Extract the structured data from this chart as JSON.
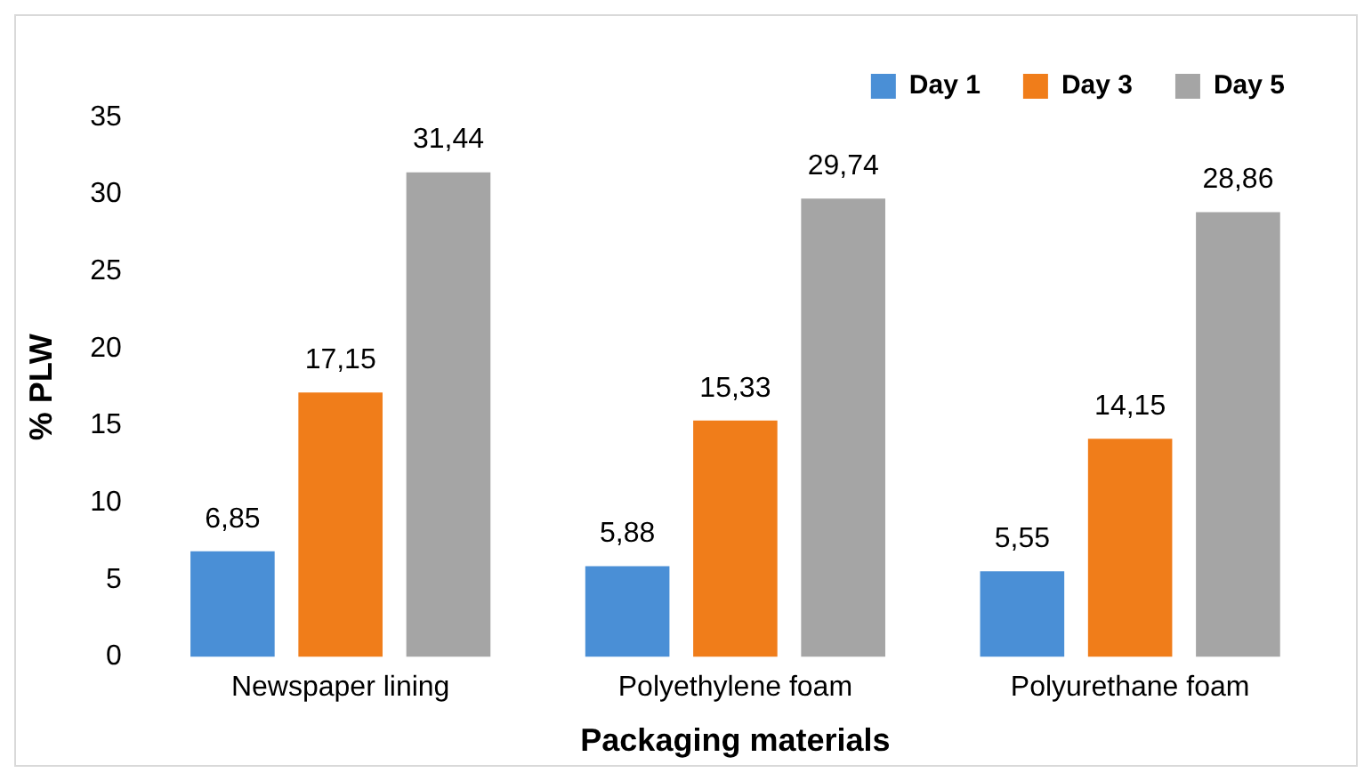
{
  "chart_data": {
    "type": "bar",
    "xlabel": "Packaging materials",
    "ylabel": "% PLW",
    "categories": [
      "Newspaper lining",
      "Polyethylene foam",
      "Polyurethane foam"
    ],
    "series": [
      {
        "name": "Day 1",
        "color": "#4a8fd6",
        "values": [
          6.85,
          5.88,
          5.55
        ],
        "value_labels": [
          "6,85",
          "5,88",
          "5,55"
        ]
      },
      {
        "name": "Day 3",
        "color": "#f07d1a",
        "values": [
          17.15,
          15.33,
          14.15
        ],
        "value_labels": [
          "17,15",
          "15,33",
          "14,15"
        ]
      },
      {
        "name": "Day 5",
        "color": "#a5a5a5",
        "values": [
          31.44,
          29.74,
          28.86
        ],
        "value_labels": [
          "31,44",
          "29,74",
          "28,86"
        ]
      }
    ],
    "ylim": [
      0,
      35
    ],
    "yticks": [
      0,
      5,
      10,
      15,
      20,
      25,
      30,
      35
    ],
    "grid": false,
    "legend": "top right"
  }
}
